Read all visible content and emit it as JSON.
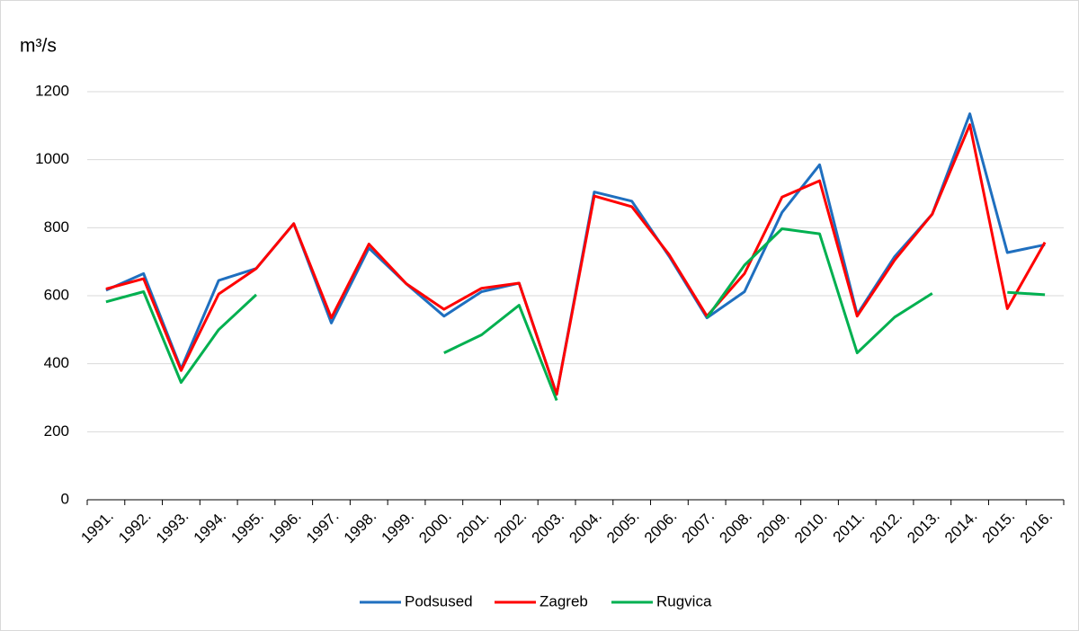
{
  "chart_data": {
    "type": "line",
    "y_label": "m³/s",
    "categories": [
      "1991.",
      "1992.",
      "1993.",
      "1994.",
      "1995.",
      "1996.",
      "1997.",
      "1998.",
      "1999.",
      "2000.",
      "2001.",
      "2002.",
      "2003.",
      "2004.",
      "2005.",
      "2006.",
      "2007.",
      "2008.",
      "2009.",
      "2010.",
      "2011.",
      "2012.",
      "2013.",
      "2014.",
      "2015.",
      "2016."
    ],
    "series": [
      {
        "name": "Podsused",
        "color": "#1f6fbf",
        "values": [
          616,
          665,
          385,
          645,
          680,
          812,
          520,
          740,
          635,
          540,
          612,
          637,
          310,
          905,
          878,
          715,
          535,
          612,
          845,
          985,
          545,
          715,
          840,
          1135,
          727,
          750
        ]
      },
      {
        "name": "Zagreb",
        "color": "#ff0000",
        "values": [
          620,
          650,
          380,
          605,
          680,
          812,
          535,
          752,
          635,
          560,
          622,
          637,
          310,
          893,
          862,
          720,
          540,
          665,
          890,
          938,
          540,
          705,
          840,
          1103,
          562,
          757
        ]
      },
      {
        "name": "Rugvica",
        "color": "#00b050",
        "values": [
          582,
          612,
          345,
          500,
          603,
          null,
          null,
          null,
          null,
          432,
          485,
          572,
          292,
          null,
          null,
          null,
          535,
          690,
          797,
          782,
          432,
          537,
          607,
          null,
          610,
          603
        ]
      }
    ],
    "ylim": [
      0,
      1200
    ],
    "yticks": [
      0,
      200,
      400,
      600,
      800,
      1000,
      1200
    ],
    "grid": true,
    "legend": "bottom"
  }
}
